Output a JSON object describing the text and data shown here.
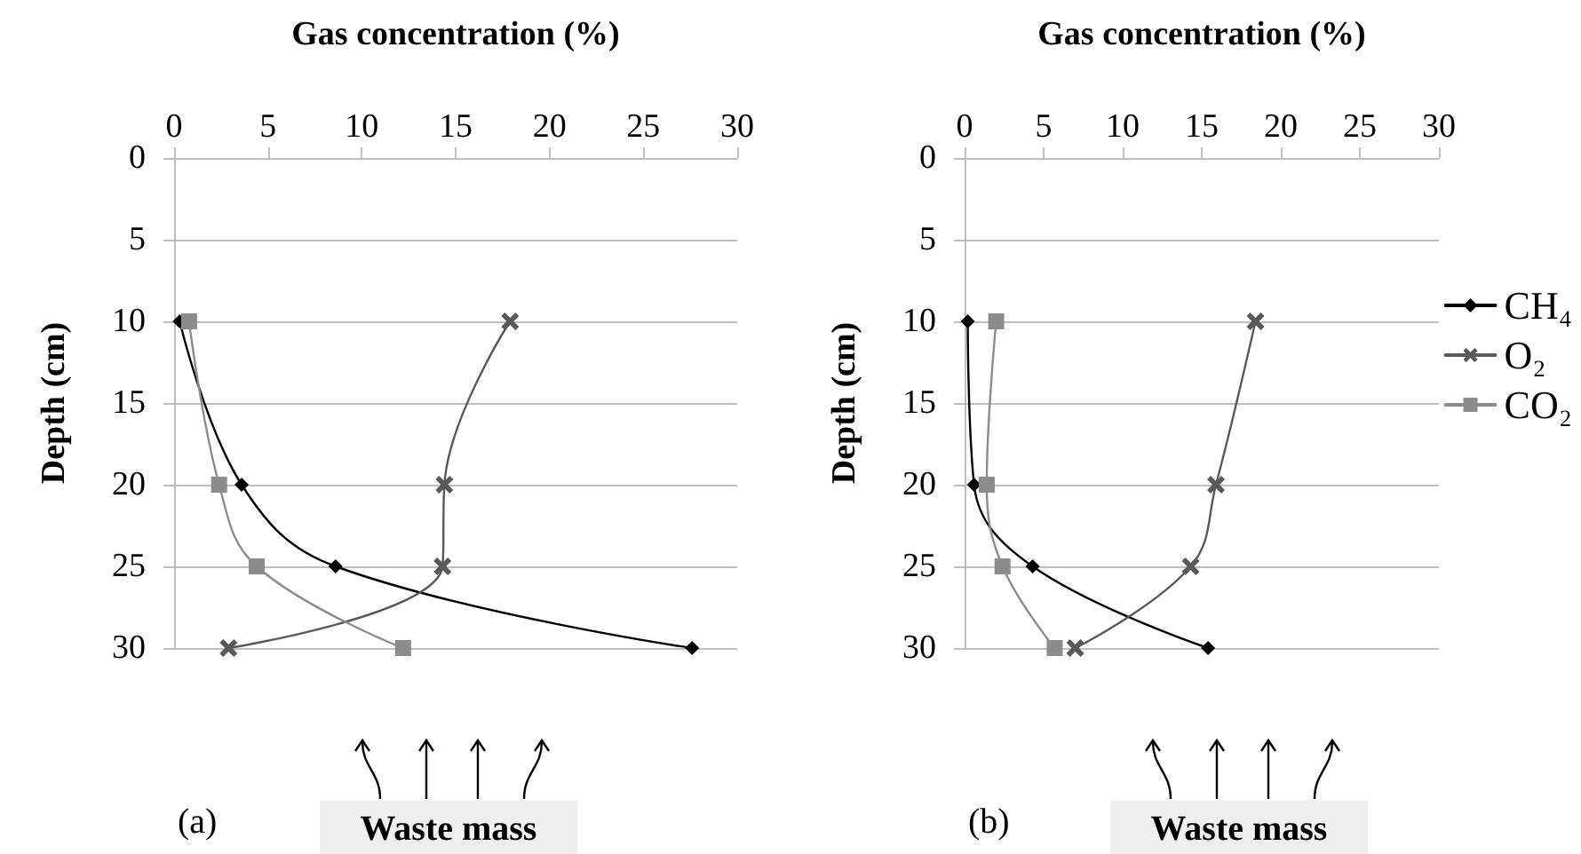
{
  "chart_data": [
    {
      "type": "line",
      "xlabel": "Gas concentration (%)",
      "ylabel": "Depth (cm)",
      "xlim": [
        0,
        30
      ],
      "xticks": [
        0,
        5,
        10,
        15,
        20,
        25,
        30
      ],
      "ylim": [
        30,
        0
      ],
      "yticks": [
        0,
        5,
        10,
        15,
        20,
        25,
        30
      ],
      "grid": "y",
      "legend": false,
      "line_style": "solid",
      "annotations": [
        "(a)",
        "Waste mass"
      ],
      "series": [
        {
          "color": "#000000",
          "marker": "diamond",
          "x": [
            0.3,
            3.6,
            8.6,
            27.6
          ],
          "values": [
            10,
            20,
            25,
            30
          ]
        },
        {
          "color": "#595959",
          "marker": "cross",
          "x": [
            17.9,
            14.4,
            14.3,
            2.9
          ],
          "values": [
            10,
            20,
            25,
            30
          ]
        },
        {
          "color": "#8c8c8c",
          "marker": "square",
          "x": [
            0.8,
            2.4,
            4.4,
            12.2
          ],
          "values": [
            10,
            20,
            25,
            30
          ]
        }
      ]
    },
    {
      "type": "line",
      "xlabel": "Gas concentration (%)",
      "ylabel": "Depth (cm)",
      "xlim": [
        0,
        30
      ],
      "xticks": [
        0,
        5,
        10,
        15,
        20,
        25,
        30
      ],
      "ylim": [
        30,
        0
      ],
      "yticks": [
        0,
        5,
        10,
        15,
        20,
        25,
        30
      ],
      "grid": "y",
      "legend": "right",
      "line_style": "solid",
      "annotations": [
        "(b)",
        "Waste mass"
      ],
      "series": [
        {
          "name": "CH₄",
          "color": "#000000",
          "marker": "diamond",
          "x": [
            0.2,
            0.6,
            4.3,
            15.4
          ],
          "values": [
            10,
            20,
            25,
            30
          ]
        },
        {
          "name": "O₂",
          "color": "#595959",
          "marker": "cross",
          "x": [
            18.4,
            15.9,
            14.3,
            7.0
          ],
          "values": [
            10,
            20,
            25,
            30
          ]
        },
        {
          "name": "CO₂",
          "color": "#8c8c8c",
          "marker": "square",
          "x": [
            2.0,
            1.4,
            2.4,
            5.7
          ],
          "values": [
            10,
            20,
            25,
            30
          ]
        }
      ]
    }
  ]
}
